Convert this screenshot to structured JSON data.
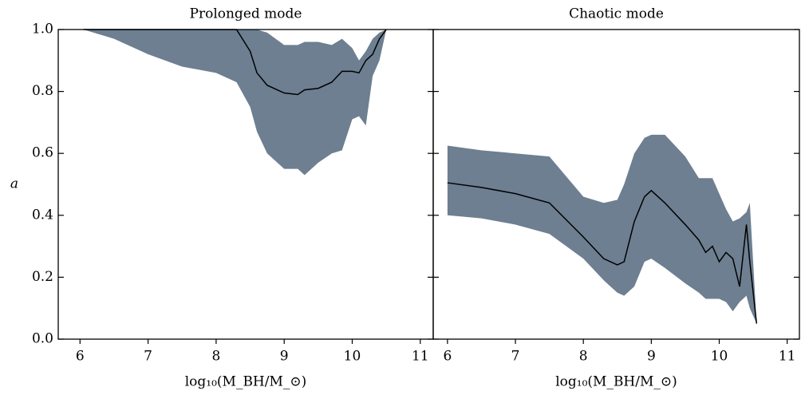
{
  "chart_data": [
    {
      "type": "band-line",
      "title": "Prolonged mode",
      "xlabel": "log₁₀(M_BH/M_⊙)",
      "ylabel": "a",
      "color": "#000000",
      "band_color": "#6d7f91",
      "x": [
        6.05,
        6.5,
        7.0,
        7.5,
        8.0,
        8.3,
        8.5,
        8.6,
        8.75,
        9.0,
        9.2,
        9.3,
        9.5,
        9.7,
        9.85,
        10.0,
        10.1,
        10.2,
        10.3,
        10.4,
        10.5
      ],
      "values": [
        1.0,
        1.0,
        1.0,
        1.0,
        1.0,
        1.0,
        0.93,
        0.86,
        0.82,
        0.795,
        0.79,
        0.805,
        0.81,
        0.83,
        0.865,
        0.865,
        0.86,
        0.9,
        0.92,
        0.97,
        1.0
      ],
      "lower": [
        1.0,
        0.97,
        0.92,
        0.88,
        0.86,
        0.83,
        0.75,
        0.67,
        0.6,
        0.55,
        0.55,
        0.53,
        0.57,
        0.6,
        0.61,
        0.71,
        0.72,
        0.69,
        0.85,
        0.9,
        1.0
      ],
      "upper": [
        1.0,
        1.0,
        1.0,
        1.0,
        1.0,
        1.0,
        1.0,
        1.0,
        0.99,
        0.95,
        0.95,
        0.96,
        0.96,
        0.95,
        0.97,
        0.94,
        0.9,
        0.93,
        0.97,
        0.99,
        1.0
      ],
      "xlim": [
        5.68,
        11.19
      ],
      "ylim": [
        0,
        1
      ],
      "xticks": [
        6,
        7,
        8,
        9,
        10,
        11
      ],
      "yticks": [
        {
          "value": 0,
          "label": "0.0"
        },
        {
          "value": 0.2,
          "label": "0.2"
        },
        {
          "value": 0.4,
          "label": "0.4"
        },
        {
          "value": 0.6,
          "label": "0.6"
        },
        {
          "value": 0.8,
          "label": "0.8"
        },
        {
          "value": 1,
          "label": "1.0"
        }
      ]
    },
    {
      "type": "band-line",
      "title": "Chaotic mode",
      "xlabel": "log₁₀(M_BH/M_⊙)",
      "color": "#000000",
      "band_color": "#6d7f91",
      "x": [
        6.0,
        6.5,
        7.0,
        7.5,
        8.0,
        8.3,
        8.5,
        8.6,
        8.75,
        8.9,
        9.0,
        9.2,
        9.5,
        9.7,
        9.8,
        9.9,
        10.0,
        10.1,
        10.2,
        10.3,
        10.4,
        10.45,
        10.55
      ],
      "values": [
        0.505,
        0.49,
        0.47,
        0.44,
        0.33,
        0.26,
        0.24,
        0.25,
        0.38,
        0.46,
        0.48,
        0.44,
        0.37,
        0.32,
        0.28,
        0.3,
        0.25,
        0.28,
        0.26,
        0.17,
        0.37,
        0.25,
        0.05
      ],
      "lower": [
        0.4,
        0.39,
        0.37,
        0.34,
        0.26,
        0.19,
        0.15,
        0.14,
        0.17,
        0.25,
        0.26,
        0.23,
        0.18,
        0.15,
        0.13,
        0.13,
        0.13,
        0.12,
        0.09,
        0.12,
        0.14,
        0.1,
        0.05
      ],
      "upper": [
        0.625,
        0.61,
        0.6,
        0.59,
        0.46,
        0.44,
        0.45,
        0.5,
        0.6,
        0.65,
        0.66,
        0.66,
        0.59,
        0.52,
        0.52,
        0.52,
        0.47,
        0.42,
        0.38,
        0.39,
        0.41,
        0.44,
        0.05
      ],
      "xlim": [
        5.79,
        11.18
      ],
      "ylim": [
        0,
        1
      ],
      "xticks": [
        6,
        7,
        8,
        9,
        10,
        11
      ],
      "yticks": [
        0,
        0.2,
        0.4,
        0.6,
        0.8,
        1
      ]
    }
  ]
}
